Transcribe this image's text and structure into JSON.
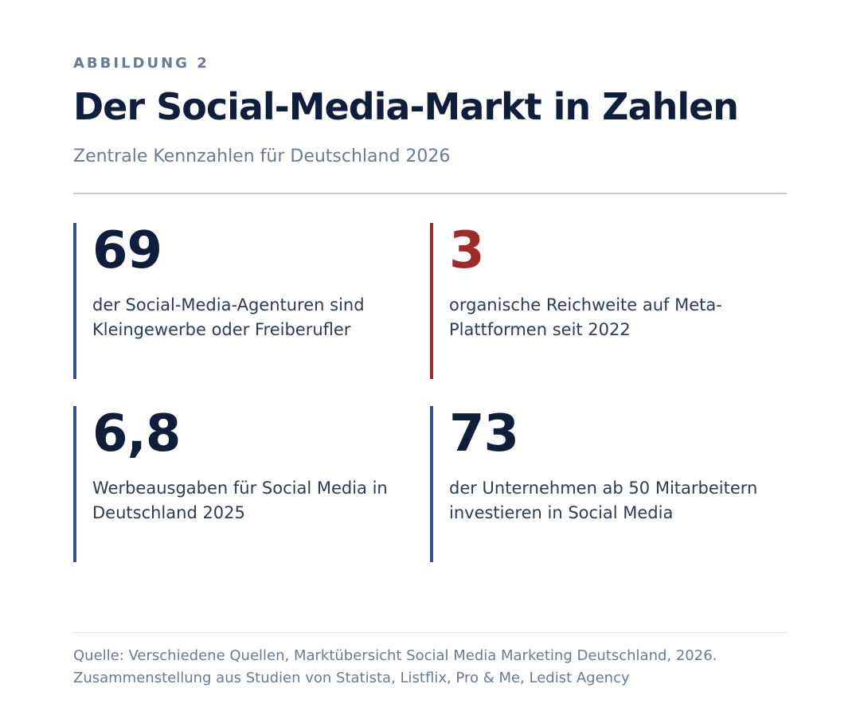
{
  "header": {
    "eyebrow": "ABBILDUNG 2",
    "title": "Der Social-Media-Markt in Zahlen",
    "subtitle": "Zentrale Kennzahlen für Deutschland 2026"
  },
  "stats": [
    {
      "value": "69",
      "description": "der Social-Media-Agenturen sind Kleingewerbe oder Freiberufler",
      "accent_color": "#2d5592"
    },
    {
      "value": "3",
      "description": "organische Reichweite auf Meta-Plattformen seit 2022",
      "accent_color": "#a12b2b"
    },
    {
      "value": "6,8",
      "description": "Werbeausgaben für Social Media in Deutschland 2025",
      "accent_color": "#2d5592"
    },
    {
      "value": "73",
      "description": "der Unternehmen ab 50 Mitarbeitern investieren in Social Media",
      "accent_color": "#2d5592"
    }
  ],
  "footer": {
    "source": "Quelle: Verschiedene Quellen, Marktübersicht Social Media Marketing Deutschland, 2026. Zusammenstellung aus Studien von Statista, Listflix, Pro & Me, Ledist Agency"
  },
  "colors": {
    "text_primary": "#0f1e3a",
    "text_muted": "#6b7a90",
    "accent_blue": "#2d5592",
    "accent_red": "#a12b2b"
  }
}
